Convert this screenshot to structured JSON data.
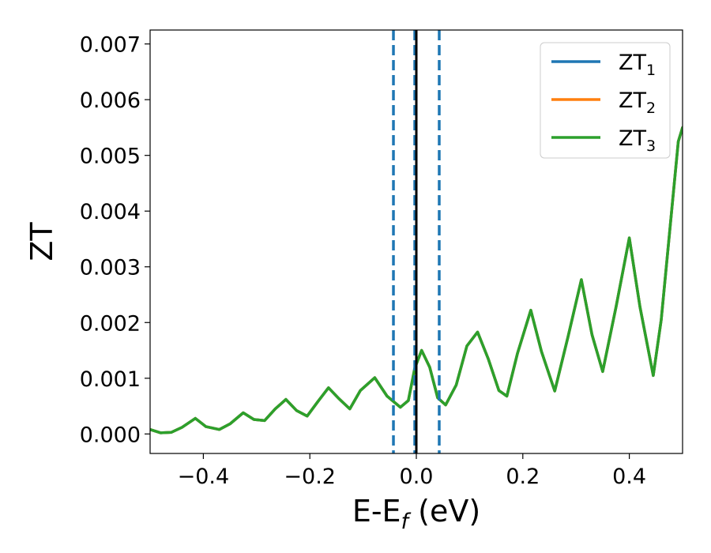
{
  "chart_data": {
    "type": "line",
    "xlabel": {
      "main": "E-E",
      "sub": "f",
      "tail": " (eV)"
    },
    "ylabel": "ZT",
    "xlim": [
      -0.5,
      0.5
    ],
    "ylim": [
      -0.00035,
      0.00725
    ],
    "xticks": [
      {
        "value": -0.4,
        "label": "−0.4"
      },
      {
        "value": -0.2,
        "label": "−0.2"
      },
      {
        "value": 0.0,
        "label": "0.0"
      },
      {
        "value": 0.2,
        "label": "0.2"
      },
      {
        "value": 0.4,
        "label": "0.4"
      }
    ],
    "yticks": [
      {
        "value": 0.0,
        "label": "0.000"
      },
      {
        "value": 0.001,
        "label": "0.001"
      },
      {
        "value": 0.002,
        "label": "0.002"
      },
      {
        "value": 0.003,
        "label": "0.003"
      },
      {
        "value": 0.004,
        "label": "0.004"
      },
      {
        "value": 0.005,
        "label": "0.005"
      },
      {
        "value": 0.006,
        "label": "0.006"
      },
      {
        "value": 0.007,
        "label": "0.007"
      }
    ],
    "grid": false,
    "legend_position": "top-right",
    "vertical_lines": [
      {
        "x": -0.043,
        "style": "dashed",
        "color": "#1f77b4"
      },
      {
        "x": -0.003,
        "style": "dashed",
        "color": "#1f77b4"
      },
      {
        "x": 0.043,
        "style": "dashed",
        "color": "#1f77b4"
      },
      {
        "x": 0.0,
        "style": "solid",
        "color": "#000000"
      }
    ],
    "series": [
      {
        "name": {
          "main": "ZT",
          "sub": "1"
        },
        "color": "#1f77b4",
        "hidden_under": true
      },
      {
        "name": {
          "main": "ZT",
          "sub": "2"
        },
        "color": "#ff7f0e",
        "hidden_under": true
      },
      {
        "name": {
          "main": "ZT",
          "sub": "3"
        },
        "color": "#2ca02c"
      }
    ],
    "shared_points": [
      [
        -0.5,
        8e-05
      ],
      [
        -0.48,
        2e-05
      ],
      [
        -0.46,
        3e-05
      ],
      [
        -0.44,
        0.00012
      ],
      [
        -0.415,
        0.00028
      ],
      [
        -0.395,
        0.00013
      ],
      [
        -0.37,
        8e-05
      ],
      [
        -0.35,
        0.00018
      ],
      [
        -0.325,
        0.00038
      ],
      [
        -0.305,
        0.00026
      ],
      [
        -0.285,
        0.00024
      ],
      [
        -0.265,
        0.00045
      ],
      [
        -0.245,
        0.00062
      ],
      [
        -0.225,
        0.00042
      ],
      [
        -0.205,
        0.00032
      ],
      [
        -0.185,
        0.00058
      ],
      [
        -0.165,
        0.00083
      ],
      [
        -0.145,
        0.00063
      ],
      [
        -0.125,
        0.00045
      ],
      [
        -0.105,
        0.00078
      ],
      [
        -0.078,
        0.00101
      ],
      [
        -0.055,
        0.00068
      ],
      [
        -0.03,
        0.00048
      ],
      [
        -0.015,
        0.0006
      ],
      [
        -0.003,
        0.00118
      ],
      [
        0.01,
        0.0015
      ],
      [
        0.025,
        0.0012
      ],
      [
        0.04,
        0.00065
      ],
      [
        0.055,
        0.00052
      ],
      [
        0.075,
        0.00088
      ],
      [
        0.095,
        0.00158
      ],
      [
        0.115,
        0.00183
      ],
      [
        0.135,
        0.00135
      ],
      [
        0.155,
        0.00078
      ],
      [
        0.17,
        0.00068
      ],
      [
        0.19,
        0.00145
      ],
      [
        0.215,
        0.00222
      ],
      [
        0.235,
        0.00148
      ],
      [
        0.26,
        0.00077
      ],
      [
        0.285,
        0.00175
      ],
      [
        0.31,
        0.00277
      ],
      [
        0.33,
        0.00178
      ],
      [
        0.35,
        0.00112
      ],
      [
        0.375,
        0.00228
      ],
      [
        0.4,
        0.00352
      ],
      [
        0.42,
        0.00228
      ],
      [
        0.445,
        0.00105
      ],
      [
        0.46,
        0.00205
      ],
      [
        0.48,
        0.00405
      ],
      [
        0.492,
        0.00525
      ],
      [
        0.5,
        0.0055
      ]
    ]
  }
}
